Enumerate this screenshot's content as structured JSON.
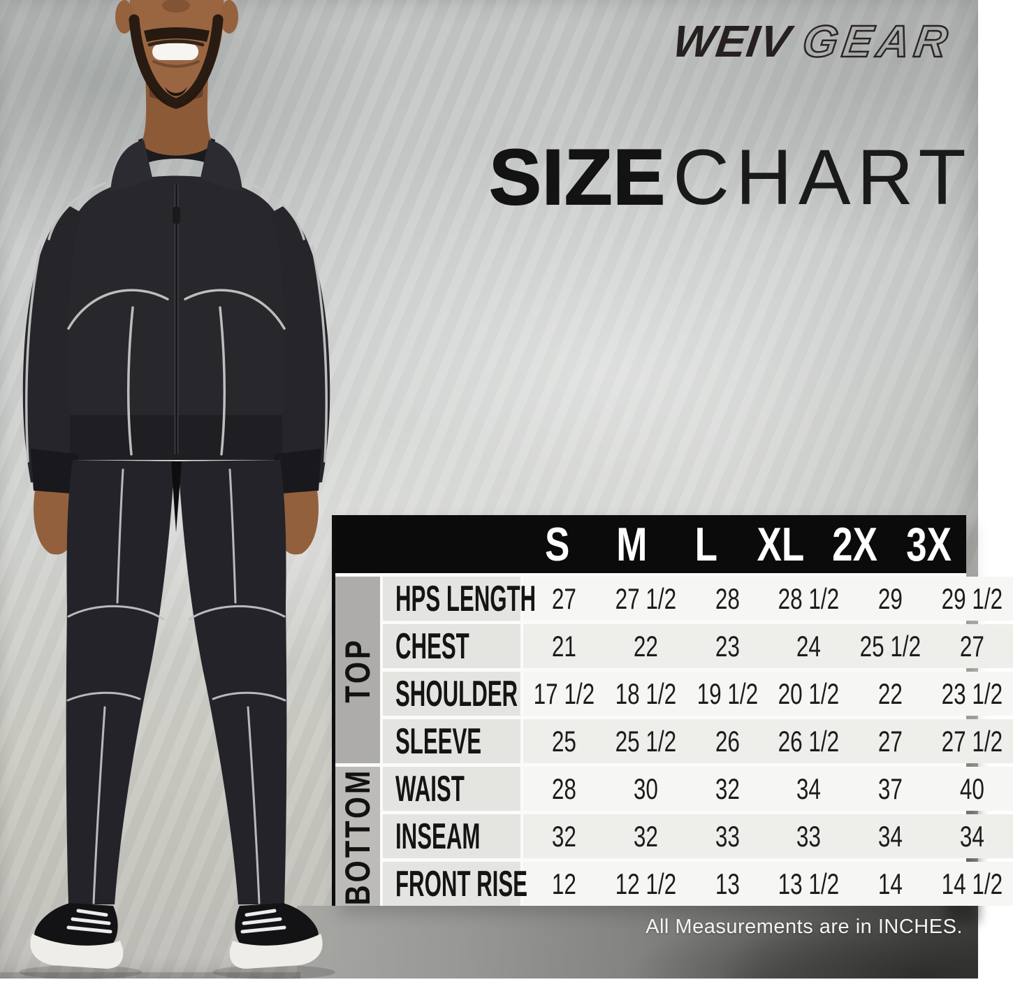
{
  "brand": {
    "weiv": "WEIV",
    "gear": "GEAR"
  },
  "title": {
    "bold": "SIZE",
    "light": "CHART"
  },
  "photo": {
    "alt": "Model wearing black track jacket and track pants with white piping and black sneakers"
  },
  "chart_data": {
    "type": "table",
    "title": "SIZE CHART",
    "columns": [
      "S",
      "M",
      "L",
      "XL",
      "2X",
      "3X"
    ],
    "groups": [
      {
        "label": "TOP",
        "rows": [
          {
            "label": "HPS LENGTH",
            "values": [
              "27",
              "27 1/2",
              "28",
              "28 1/2",
              "29",
              "29 1/2"
            ]
          },
          {
            "label": "CHEST",
            "values": [
              "21",
              "22",
              "23",
              "24",
              "25 1/2",
              "27"
            ]
          },
          {
            "label": "SHOULDER",
            "values": [
              "17 1/2",
              "18 1/2",
              "19 1/2",
              "20 1/2",
              "22",
              "23 1/2"
            ]
          },
          {
            "label": "SLEEVE",
            "values": [
              "25",
              "25 1/2",
              "26",
              "26 1/2",
              "27",
              "27 1/2"
            ]
          }
        ]
      },
      {
        "label": "BOTTOM",
        "rows": [
          {
            "label": "WAIST",
            "values": [
              "28",
              "30",
              "32",
              "34",
              "37",
              "40"
            ]
          },
          {
            "label": "INSEAM",
            "values": [
              "32",
              "32",
              "33",
              "33",
              "34",
              "34"
            ]
          },
          {
            "label": "FRONT RISE",
            "values": [
              "12",
              "12 1/2",
              "13",
              "13 1/2",
              "14",
              "14 1/2"
            ]
          }
        ]
      }
    ],
    "units_note": "All Measurements are in INCHES.",
    "colors": {
      "header_bg": "#0b0b0c",
      "header_text": "#ffffff",
      "group_top_bg": "#adacaa",
      "group_bottom_bg": "#bcbbb8",
      "label_cell_bg": "#e4e4e1",
      "row_light": "#f6f6f4",
      "row_dark": "#eeeeeb",
      "value_text": "#1c1c1c",
      "footer_text": "#f4f4f4"
    }
  }
}
